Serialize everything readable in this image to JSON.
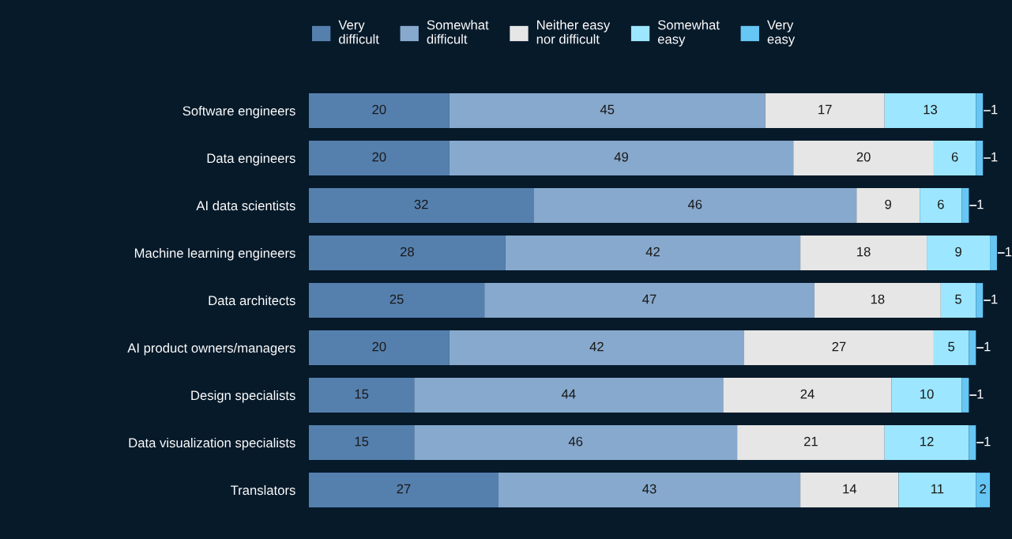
{
  "chart_data": {
    "type": "bar",
    "orientation": "horizontal",
    "stacked": true,
    "data_labels": true,
    "legend": "top",
    "grid": false,
    "tick_labels": "y",
    "xlim": [
      0,
      100
    ],
    "categories": [
      "Software engineers",
      "Data engineers",
      "AI data scientists",
      "Machine learning engineers",
      "Data architects",
      "AI product owners/managers",
      "Design specialists",
      "Data visualization specialists",
      "Translators"
    ],
    "series": [
      {
        "name": "Very\ndifficult",
        "color": "#5580ae",
        "values": [
          20,
          20,
          32,
          28,
          25,
          20,
          15,
          15,
          27
        ]
      },
      {
        "name": "Somewhat\ndifficult",
        "color": "#87a9cd",
        "values": [
          45,
          49,
          46,
          42,
          47,
          42,
          44,
          46,
          43
        ]
      },
      {
        "name": "Neither easy\nnor difficult",
        "color": "#e6e6e6",
        "values": [
          17,
          20,
          9,
          18,
          18,
          27,
          24,
          21,
          14
        ]
      },
      {
        "name": "Somewhat\neasy",
        "color": "#9ce6ff",
        "values": [
          13,
          6,
          6,
          9,
          5,
          5,
          10,
          12,
          11
        ]
      },
      {
        "name": "Very\neasy",
        "color": "#66c6f4",
        "values": [
          1,
          1,
          1,
          1,
          1,
          1,
          1,
          1,
          2
        ]
      }
    ]
  }
}
